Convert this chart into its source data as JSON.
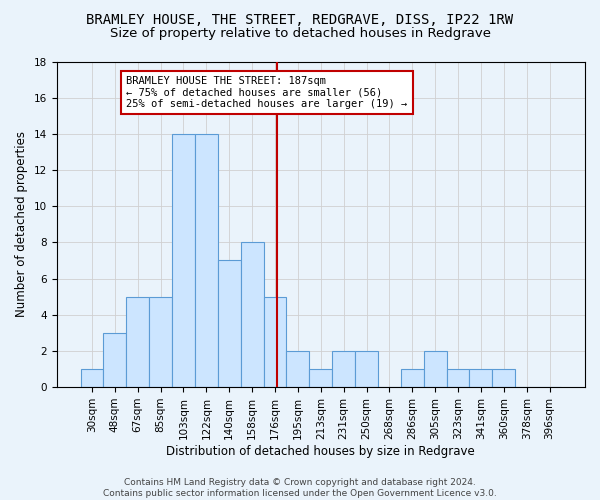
{
  "title": "BRAMLEY HOUSE, THE STREET, REDGRAVE, DISS, IP22 1RW",
  "subtitle": "Size of property relative to detached houses in Redgrave",
  "xlabel": "Distribution of detached houses by size in Redgrave",
  "ylabel": "Number of detached properties",
  "bin_labels": [
    "30sqm",
    "48sqm",
    "67sqm",
    "85sqm",
    "103sqm",
    "122sqm",
    "140sqm",
    "158sqm",
    "176sqm",
    "195sqm",
    "213sqm",
    "231sqm",
    "250sqm",
    "268sqm",
    "286sqm",
    "305sqm",
    "323sqm",
    "341sqm",
    "360sqm",
    "378sqm",
    "396sqm"
  ],
  "bar_heights": [
    1,
    3,
    5,
    5,
    14,
    14,
    7,
    8,
    5,
    2,
    1,
    2,
    2,
    0,
    1,
    2,
    1,
    1,
    1,
    0,
    0
  ],
  "bar_color": "#cce5ff",
  "bar_edge_color": "#5b9bd5",
  "vline_color": "#c00000",
  "annotation_text": "BRAMLEY HOUSE THE STREET: 187sqm\n← 75% of detached houses are smaller (56)\n25% of semi-detached houses are larger (19) →",
  "annotation_box_color": "#ffffff",
  "annotation_box_edge": "#c00000",
  "ylim": [
    0,
    18
  ],
  "yticks": [
    0,
    2,
    4,
    6,
    8,
    10,
    12,
    14,
    16,
    18
  ],
  "grid_color": "#d0d0d0",
  "background_color": "#eaf3fb",
  "footer_text": "Contains HM Land Registry data © Crown copyright and database right 2024.\nContains public sector information licensed under the Open Government Licence v3.0.",
  "title_fontsize": 10,
  "subtitle_fontsize": 9.5,
  "xlabel_fontsize": 8.5,
  "ylabel_fontsize": 8.5,
  "tick_fontsize": 7.5,
  "footer_fontsize": 6.5,
  "annotation_fontsize": 7.5
}
